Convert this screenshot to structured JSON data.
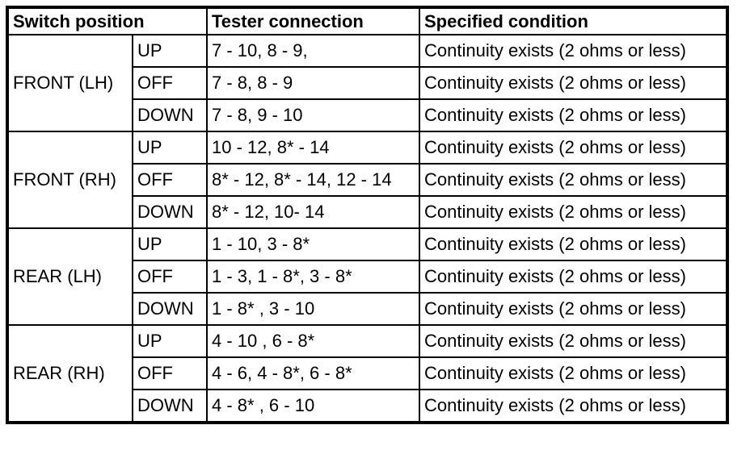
{
  "table": {
    "headers": {
      "switch_position": "Switch position",
      "tester_connection": "Tester connection",
      "specified_condition": "Specified condition"
    },
    "groups": [
      {
        "label": "FRONT (LH)",
        "rows": [
          {
            "position": "UP",
            "connection": "7 - 10, 8 - 9,",
            "condition": "Continuity exists (2 ohms or less)"
          },
          {
            "position": "OFF",
            "connection": "7 - 8, 8 - 9",
            "condition": "Continuity exists (2 ohms or less)"
          },
          {
            "position": "DOWN",
            "connection": "7 - 8, 9 - 10",
            "condition": "Continuity exists (2 ohms or less)"
          }
        ]
      },
      {
        "label": "FRONT (RH)",
        "rows": [
          {
            "position": "UP",
            "connection": "10 - 12, 8* - 14",
            "condition": "Continuity exists (2 ohms or less)"
          },
          {
            "position": "OFF",
            "connection": "8* - 12, 8* - 14, 12 - 14",
            "condition": "Continuity exists (2 ohms or less)"
          },
          {
            "position": "DOWN",
            "connection": "8* - 12, 10- 14",
            "condition": "Continuity exists (2 ohms or less)"
          }
        ]
      },
      {
        "label": "REAR (LH)",
        "rows": [
          {
            "position": "UP",
            "connection": "1 - 10, 3 - 8*",
            "condition": "Continuity exists (2 ohms or less)"
          },
          {
            "position": "OFF",
            "connection": "1 - 3, 1 - 8*, 3 - 8*",
            "condition": "Continuity exists (2 ohms or less)"
          },
          {
            "position": "DOWN",
            "connection": "1 - 8* , 3 - 10",
            "condition": "Continuity exists (2 ohms or less)"
          }
        ]
      },
      {
        "label": "REAR (RH)",
        "rows": [
          {
            "position": "UP",
            "connection": "4 - 10 , 6 - 8*",
            "condition": "Continuity exists (2 ohms or less)"
          },
          {
            "position": "OFF",
            "connection": "4 - 6, 4 - 8*, 6 - 8*",
            "condition": "Continuity exists (2 ohms or less)"
          },
          {
            "position": "DOWN",
            "connection": "4 - 8* , 6 - 10",
            "condition": "Continuity exists (2 ohms or less)"
          }
        ]
      }
    ]
  }
}
